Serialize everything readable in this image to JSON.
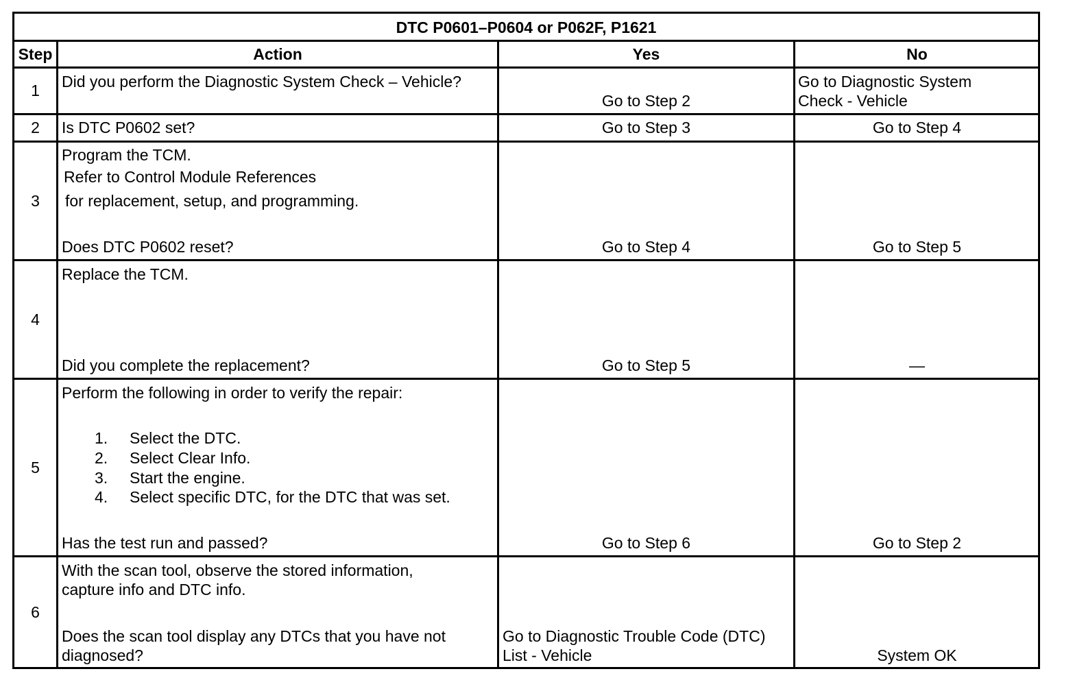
{
  "title": "DTC P0601–P0604 or P062F, P1621",
  "headers": {
    "step": "Step",
    "action": "Action",
    "yes": "Yes",
    "no": "No"
  },
  "rows": [
    {
      "step": "1",
      "action": [
        "Did you perform the Diagnostic System Check – Vehicle?"
      ],
      "yes": [
        "Go to Step 2"
      ],
      "no": [
        "Go to Diagnostic System",
        "Check - Vehicle"
      ]
    },
    {
      "step": "2",
      "action": [
        "Is DTC P0602 set?"
      ],
      "yes": [
        "Go to Step 3"
      ],
      "no": [
        "Go to Step 4"
      ]
    },
    {
      "step": "3",
      "action": [
        "Program the TCM.",
        "Refer to Control Module References",
        "for replacement, setup, and programming.",
        "Does DTC P0602 reset?"
      ],
      "yes": [
        "Go to Step 4"
      ],
      "no": [
        "Go to Step 5"
      ]
    },
    {
      "step": "4",
      "action": [
        "Replace the TCM.",
        "Did you complete the replacement?"
      ],
      "yes": [
        "Go to Step 5"
      ],
      "no": [
        "—"
      ]
    },
    {
      "step": "5",
      "action": [
        "Perform the following in order to verify the repair:",
        "Has the test run and passed?"
      ],
      "list": [
        {
          "n": "1.",
          "text": "Select the DTC."
        },
        {
          "n": "2.",
          "text": "Select Clear Info."
        },
        {
          "n": "3.",
          "text": "Start the engine."
        },
        {
          "n": "4.",
          "text": "Select specific DTC, for the DTC that was set."
        }
      ],
      "yes": [
        "Go to Step 6"
      ],
      "no": [
        "Go to Step 2"
      ]
    },
    {
      "step": "6",
      "action": [
        "With the scan tool, observe the stored information,",
        "capture info and DTC info.",
        "Does the scan tool display any DTCs that you have not",
        "diagnosed?"
      ],
      "yes": [
        "Go to Diagnostic Trouble Code (DTC)",
        "List - Vehicle"
      ],
      "no": [
        "System OK"
      ]
    }
  ]
}
